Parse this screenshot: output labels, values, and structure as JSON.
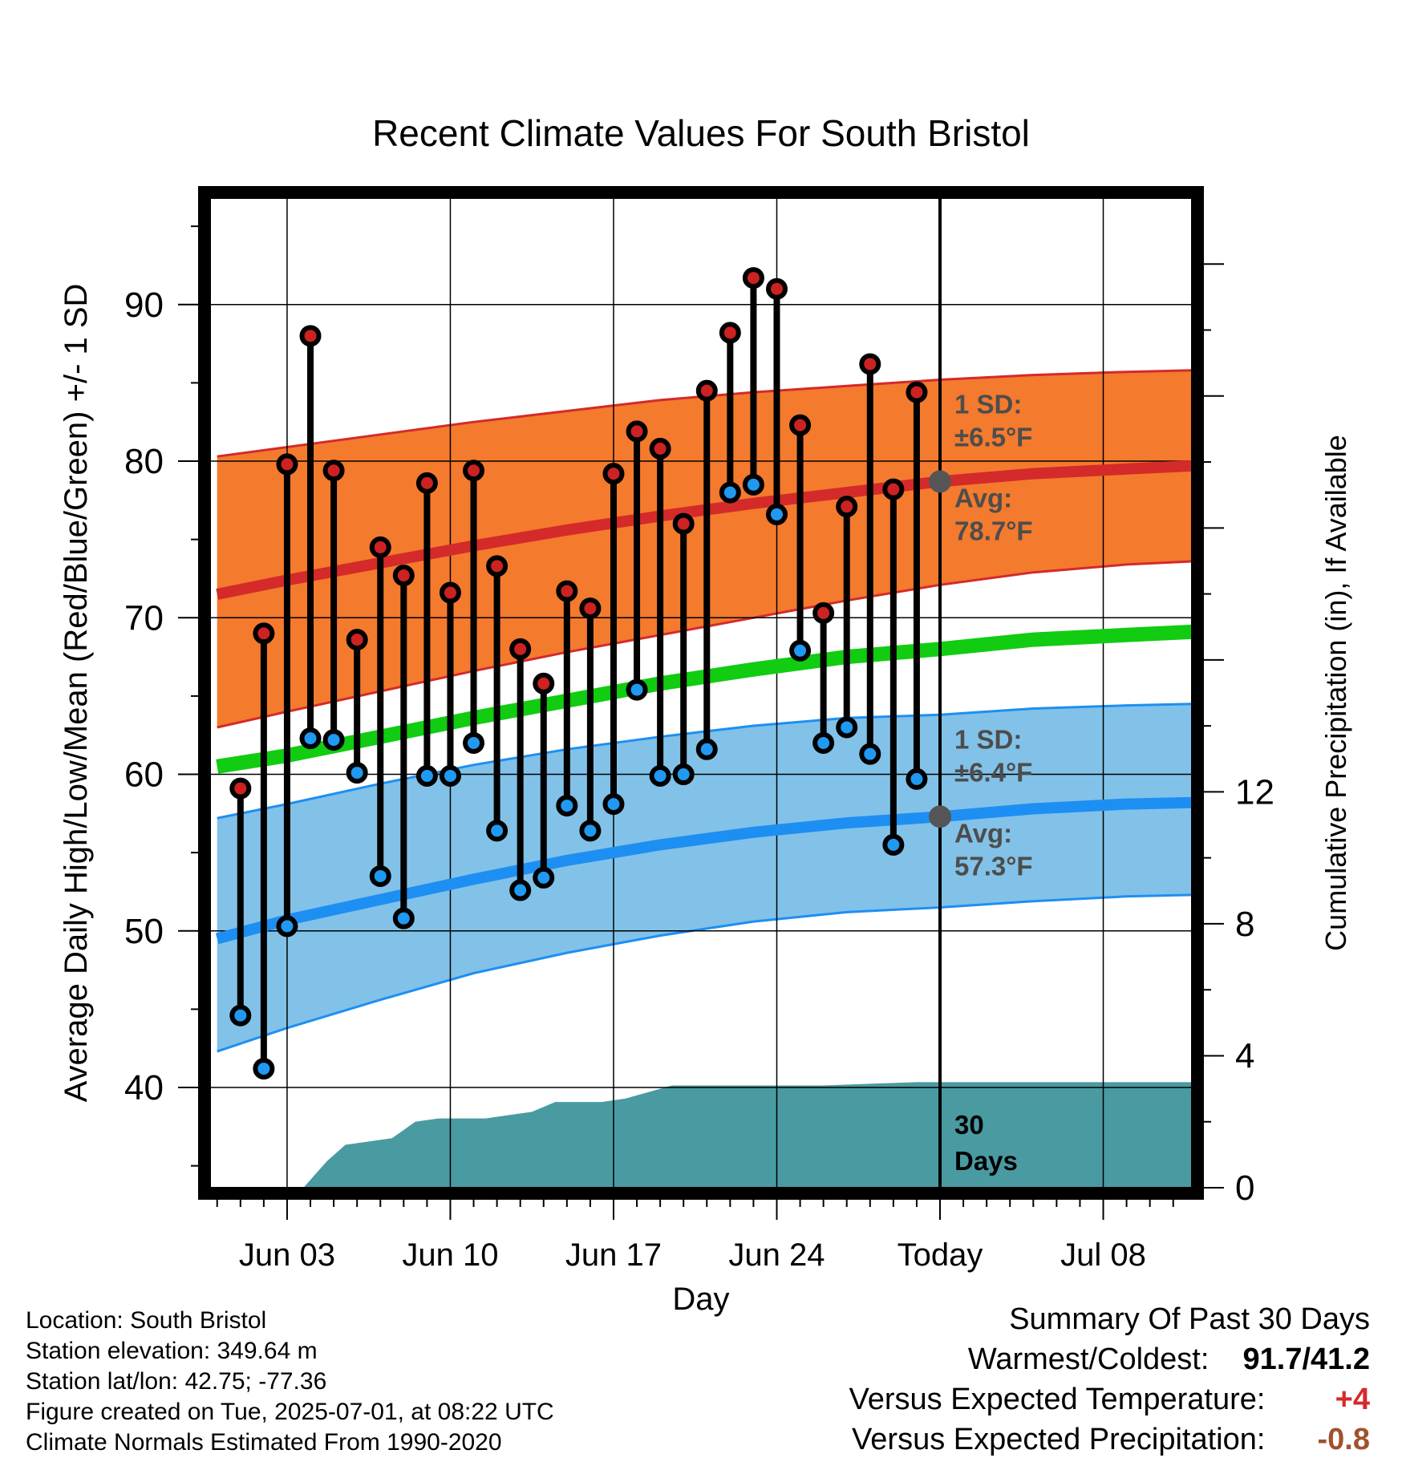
{
  "chart_data": {
    "type": "line",
    "title": "Recent Climate Values For South Bristol",
    "xlabel": "Day",
    "ylabel": "Average Daily High/Low/Mean (Red/Blue/Green) +/- 1 SD",
    "ylabel_right": "Cumulative Precipitation (in), If Available",
    "x_domain_days": [
      -31.3,
      10.8
    ],
    "ylim": [
      33.6,
      96.8
    ],
    "ylim_right": [
      0,
      30
    ],
    "yticks": [
      40,
      50,
      60,
      70,
      80,
      90
    ],
    "yticks_right": [
      0,
      4,
      8,
      12
    ],
    "xticks": [
      {
        "day": -28,
        "label": "Jun 03"
      },
      {
        "day": -21,
        "label": "Jun 10"
      },
      {
        "day": -14,
        "label": "Jun 17"
      },
      {
        "day": -7,
        "label": "Jun 24"
      },
      {
        "day": 0,
        "label": "Today"
      },
      {
        "day": 7,
        "label": "Jul 08"
      }
    ],
    "grid": true,
    "today_label": "30\nDays",
    "normals": {
      "days": [
        -31,
        -28,
        -24,
        -20,
        -16,
        -12,
        -8,
        -4,
        0,
        4,
        8,
        10.8
      ],
      "high_mean": [
        71.5,
        72.4,
        73.5,
        74.6,
        75.6,
        76.5,
        77.3,
        78.0,
        78.7,
        79.2,
        79.5,
        79.7
      ],
      "high_upper": [
        80.3,
        80.9,
        81.7,
        82.5,
        83.2,
        83.9,
        84.4,
        84.8,
        85.2,
        85.5,
        85.7,
        85.8
      ],
      "high_lower": [
        63.0,
        64.0,
        65.3,
        66.6,
        67.8,
        68.9,
        70.0,
        71.1,
        72.1,
        72.9,
        73.4,
        73.6
      ],
      "mean": [
        60.5,
        61.2,
        62.4,
        63.6,
        64.7,
        65.8,
        66.7,
        67.5,
        68.0,
        68.6,
        68.9,
        69.1
      ],
      "low_mean": [
        49.5,
        50.7,
        52.0,
        53.3,
        54.5,
        55.5,
        56.3,
        56.9,
        57.3,
        57.8,
        58.1,
        58.2
      ],
      "low_upper": [
        57.2,
        58.1,
        59.4,
        60.6,
        61.6,
        62.4,
        63.1,
        63.6,
        63.8,
        64.2,
        64.4,
        64.5
      ],
      "low_lower": [
        42.3,
        43.8,
        45.6,
        47.3,
        48.6,
        49.7,
        50.6,
        51.2,
        51.5,
        51.9,
        52.2,
        52.3
      ],
      "colors": {
        "high_band": "#f47a2e",
        "high_line": "#d42a2a",
        "mean_line": "#11cc11",
        "low_band": "#82c2e8",
        "low_line": "#1e8ff2"
      }
    },
    "daily": {
      "days": [
        -30,
        -29,
        -28,
        -27,
        -26,
        -25,
        -24,
        -23,
        -22,
        -21,
        -20,
        -19,
        -18,
        -17,
        -16,
        -15,
        -14,
        -13,
        -12,
        -11,
        -10,
        -9,
        -8,
        -7,
        -6,
        -5,
        -4,
        -3,
        -2,
        -1
      ],
      "high": [
        59.1,
        69.0,
        79.8,
        88.0,
        79.4,
        68.6,
        74.5,
        72.7,
        78.6,
        71.6,
        79.4,
        73.3,
        68.0,
        65.8,
        71.7,
        70.6,
        79.2,
        81.9,
        80.8,
        76.0,
        84.5,
        88.2,
        91.7,
        91.0,
        82.3,
        70.3,
        77.1,
        86.2,
        78.2,
        84.4
      ],
      "low": [
        44.6,
        41.2,
        50.3,
        62.3,
        62.2,
        60.1,
        53.5,
        50.8,
        59.9,
        59.9,
        62.0,
        56.4,
        52.6,
        53.4,
        58.0,
        56.4,
        58.1,
        65.4,
        59.9,
        60.0,
        61.6,
        78.0,
        78.5,
        76.6,
        67.9,
        62.0,
        63.0,
        61.3,
        55.5,
        59.7
      ],
      "high_color": "#cc2222",
      "low_color": "#2099f2"
    },
    "precip": {
      "days": [
        -31.3,
        -27.3,
        -26.3,
        -25.5,
        -24.5,
        -23.5,
        -22.5,
        -21.5,
        -19.5,
        -18.5,
        -17.5,
        -16.5,
        -14.5,
        -13.5,
        -12.5,
        -11.5,
        -10.5,
        -8,
        -6.5,
        -5,
        -3,
        -1,
        0,
        10.8
      ],
      "cum": [
        0,
        0,
        0.8,
        1.3,
        1.4,
        1.5,
        2.0,
        2.1,
        2.1,
        2.2,
        2.3,
        2.6,
        2.6,
        2.7,
        2.9,
        3.1,
        3.1,
        3.1,
        3.1,
        3.1,
        3.15,
        3.2,
        3.2,
        3.2
      ],
      "color": "#4a9aa2"
    },
    "annotations": {
      "high_sd": "1 SD:\n±6.5°F",
      "high_avg": "Avg:\n78.7°F",
      "high_avg_value": 78.7,
      "low_sd": "1 SD:\n±6.4°F",
      "low_avg": "Avg:\n57.3°F",
      "low_avg_value": 57.3
    }
  },
  "info": {
    "location": "Location: South Bristol",
    "elevation": "Station elevation: 349.64 m",
    "latlon": "Station lat/lon: 42.75; -77.36",
    "created": "Figure created on Tue, 2025-07-01, at 08:22 UTC",
    "normals": "Climate Normals Estimated From 1990-2020"
  },
  "summary": {
    "title": "Summary Of Past 30 Days",
    "warm_cold_label": "Warmest/Coldest:",
    "warm_cold_value": "91.7/41.2",
    "temp_label": "Versus Expected Temperature:",
    "temp_value": "+4",
    "temp_color": "#d42a2a",
    "precip_label": "Versus Expected Precipitation:",
    "precip_value": "-0.8",
    "precip_color": "#a0522d"
  }
}
